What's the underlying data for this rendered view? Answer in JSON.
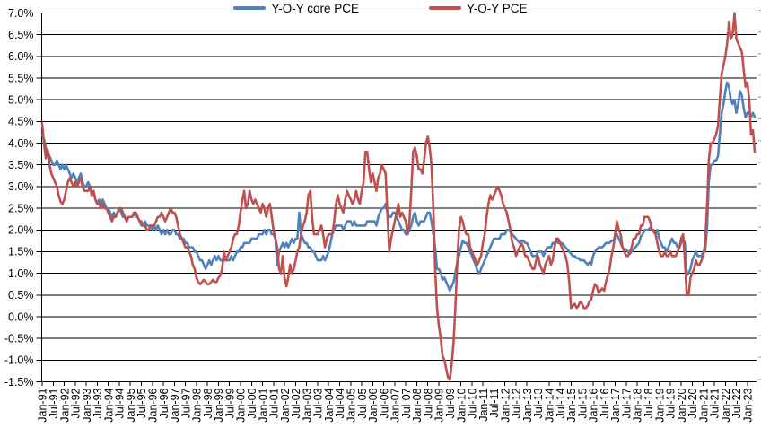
{
  "legend": {
    "items": [
      {
        "label": "Y-O-Y core PCE",
        "color": "#4F81BD"
      },
      {
        "label": "Y-O-Y PCE",
        "color": "#C0504D"
      }
    ]
  },
  "colors": {
    "background": "#FFFFFF",
    "gridline": "#000000",
    "axis_text": "#000000",
    "core_pce_line": "#4F81BD",
    "pce_line": "#C0504D"
  },
  "chart_data": {
    "type": "line",
    "title": "",
    "x_frequency": "monthly",
    "x_start": "Jan-1991",
    "x_end": "May-2023",
    "grid": true,
    "legend_position": "top-center",
    "y_axis": {
      "min": -1.5,
      "max": 7.0,
      "step": 0.5,
      "format": "percent",
      "tick_labels": [
        "7.0%",
        "6.5%",
        "6.0%",
        "5.5%",
        "5.0%",
        "4.5%",
        "4.0%",
        "3.5%",
        "3.0%",
        "2.5%",
        "2.0%",
        "1.5%",
        "1.0%",
        "0.5%",
        "0.0%",
        "-0.5%",
        "-1.0%",
        "-1.5%"
      ]
    },
    "x_tick_labels": [
      "Jan-91",
      "Jul-91",
      "Jan-92",
      "Jul-92",
      "Jan-93",
      "Jul-93",
      "Jan-94",
      "Jul-94",
      "Jan-95",
      "Jul-95",
      "Jan-96",
      "Jul-96",
      "Jan-97",
      "Jul-97",
      "Jan-98",
      "Jul-98",
      "Jan-99",
      "Jul-99",
      "Jan-00",
      "Jul-00",
      "Jan-01",
      "Jul-01",
      "Jan-02",
      "Jul-02",
      "Jan-03",
      "Jul-03",
      "Jan-04",
      "Jul-04",
      "Jan-05",
      "Jul-05",
      "Jan-06",
      "Jul-06",
      "Jan-07",
      "Jul-07",
      "Jan-08",
      "Jul-08",
      "Jan-09",
      "Jul-09",
      "Jan-10",
      "Jul-10",
      "Jan-11",
      "Jul-11",
      "Jan-12",
      "Jul-12",
      "Jan-13",
      "Jul-13",
      "Jan-14",
      "Jul-14",
      "Jan-15",
      "Jul-15",
      "Jan-16",
      "Jul-16",
      "Jan-17",
      "Jul-17",
      "Jan-18",
      "Jul-18",
      "Jan-19",
      "Jul-19",
      "Jan-20",
      "Jul-20",
      "Jan-21",
      "Jul-21",
      "Jan-22",
      "Jul-22",
      "Jan-23"
    ],
    "series": [
      {
        "name": "Y-O-Y core PCE",
        "color": "#4F81BD",
        "values": [
          4.2,
          4.1,
          3.9,
          3.8,
          3.7,
          3.6,
          3.5,
          3.5,
          3.6,
          3.5,
          3.4,
          3.5,
          3.4,
          3.5,
          3.4,
          3.3,
          3.2,
          3.3,
          3.2,
          3.1,
          3.2,
          3.3,
          3.1,
          3.0,
          3.0,
          3.1,
          3.0,
          2.8,
          2.9,
          2.7,
          2.6,
          2.7,
          2.6,
          2.7,
          2.6,
          2.5,
          2.5,
          2.4,
          2.3,
          2.4,
          2.3,
          2.4,
          2.5,
          2.4,
          2.3,
          2.3,
          2.2,
          2.3,
          2.3,
          2.3,
          2.4,
          2.3,
          2.3,
          2.2,
          2.1,
          2.1,
          2.2,
          2.1,
          2.1,
          2.1,
          2.0,
          2.1,
          2.0,
          2.1,
          2.0,
          1.9,
          2.0,
          1.9,
          2.0,
          1.9,
          1.9,
          2.0,
          2.0,
          1.9,
          1.9,
          1.8,
          1.8,
          1.8,
          1.7,
          1.7,
          1.6,
          1.6,
          1.6,
          1.5,
          1.5,
          1.4,
          1.3,
          1.3,
          1.2,
          1.1,
          1.2,
          1.3,
          1.2,
          1.3,
          1.4,
          1.3,
          1.4,
          1.3,
          1.3,
          1.3,
          1.3,
          1.3,
          1.3,
          1.4,
          1.3,
          1.4,
          1.5,
          1.5,
          1.6,
          1.6,
          1.7,
          1.7,
          1.7,
          1.7,
          1.8,
          1.8,
          1.8,
          1.8,
          1.9,
          1.9,
          1.9,
          2.0,
          1.9,
          2.0,
          2.0,
          1.9,
          1.9,
          1.8,
          1.2,
          1.5,
          1.6,
          1.7,
          1.6,
          1.7,
          1.6,
          1.7,
          1.8,
          1.7,
          1.8,
          1.8,
          2.4,
          1.9,
          1.8,
          1.7,
          1.7,
          1.6,
          1.6,
          1.5,
          1.5,
          1.4,
          1.3,
          1.3,
          1.3,
          1.4,
          1.3,
          1.4,
          1.5,
          1.7,
          1.9,
          2.0,
          2.1,
          2.1,
          2.1,
          2.1,
          2.0,
          2.1,
          2.2,
          2.2,
          2.2,
          2.1,
          2.2,
          2.1,
          2.1,
          2.1,
          2.1,
          2.1,
          2.1,
          2.2,
          2.2,
          2.2,
          2.2,
          2.2,
          2.1,
          2.3,
          2.4,
          2.5,
          2.5,
          2.6,
          2.4,
          2.3,
          2.3,
          2.4,
          2.4,
          2.3,
          2.2,
          2.1,
          2.0,
          2.0,
          1.9,
          1.9,
          2.0,
          2.1,
          2.3,
          2.4,
          2.2,
          2.1,
          2.2,
          2.2,
          2.2,
          2.3,
          2.4,
          2.4,
          2.2,
          1.9,
          1.6,
          1.1,
          1.1,
          1.0,
          0.85,
          0.9,
          0.8,
          0.7,
          0.6,
          0.7,
          0.8,
          1.0,
          1.25,
          1.4,
          1.6,
          1.75,
          1.7,
          1.7,
          1.6,
          1.5,
          1.4,
          1.3,
          1.2,
          1.05,
          1.0,
          1.1,
          1.2,
          1.3,
          1.4,
          1.5,
          1.6,
          1.7,
          1.8,
          1.8,
          1.8,
          1.8,
          1.9,
          1.9,
          1.9,
          2.0,
          2.0,
          1.95,
          1.9,
          1.85,
          1.8,
          1.75,
          1.7,
          1.75,
          1.75,
          1.7,
          1.7,
          1.6,
          1.5,
          1.4,
          1.4,
          1.4,
          1.5,
          1.5,
          1.5,
          1.4,
          1.5,
          1.6,
          1.6,
          1.6,
          1.7,
          1.7,
          1.75,
          1.7,
          1.7,
          1.7,
          1.65,
          1.6,
          1.55,
          1.5,
          1.45,
          1.4,
          1.4,
          1.35,
          1.35,
          1.3,
          1.3,
          1.3,
          1.25,
          1.2,
          1.25,
          1.2,
          1.4,
          1.5,
          1.55,
          1.6,
          1.6,
          1.6,
          1.65,
          1.7,
          1.7,
          1.7,
          1.75,
          1.75,
          1.85,
          1.9,
          1.8,
          1.7,
          1.6,
          1.55,
          1.55,
          1.5,
          1.45,
          1.5,
          1.55,
          1.6,
          1.65,
          1.7,
          1.85,
          1.9,
          2.0,
          2.0,
          2.0,
          2.05,
          2.0,
          1.95,
          1.9,
          2.0,
          1.8,
          1.7,
          1.6,
          1.6,
          1.5,
          1.6,
          1.7,
          1.8,
          1.7,
          1.7,
          1.6,
          1.6,
          1.7,
          1.8,
          1.7,
          0.95,
          1.0,
          1.1,
          1.3,
          1.4,
          1.5,
          1.4,
          1.4,
          1.4,
          1.5,
          1.5,
          2.0,
          3.1,
          3.5,
          3.5,
          3.6,
          3.6,
          3.7,
          4.2,
          4.7,
          4.9,
          5.2,
          5.4,
          5.3,
          5.0,
          4.9,
          5.0,
          4.7,
          4.9,
          5.2,
          5.1,
          4.8,
          4.6,
          4.7,
          4.7,
          4.6,
          4.7,
          4.6
        ]
      },
      {
        "name": "Y-O-Y PCE",
        "color": "#C0504D",
        "values": [
          4.45,
          4.0,
          3.65,
          3.85,
          3.5,
          3.3,
          3.2,
          3.1,
          3.0,
          2.8,
          2.65,
          2.6,
          2.7,
          2.9,
          3.1,
          3.2,
          3.1,
          3.0,
          3.1,
          3.0,
          3.1,
          3.2,
          3.0,
          2.9,
          2.9,
          2.9,
          3.0,
          2.8,
          2.9,
          2.7,
          2.6,
          2.6,
          2.5,
          2.6,
          2.5,
          2.5,
          2.4,
          2.3,
          2.2,
          2.3,
          2.3,
          2.4,
          2.5,
          2.5,
          2.4,
          2.3,
          2.2,
          2.3,
          2.3,
          2.3,
          2.4,
          2.4,
          2.3,
          2.2,
          2.2,
          2.1,
          2.1,
          2.0,
          2.0,
          2.1,
          2.1,
          2.1,
          2.2,
          2.3,
          2.3,
          2.4,
          2.3,
          2.2,
          2.3,
          2.4,
          2.5,
          2.4,
          2.4,
          2.3,
          2.1,
          1.9,
          1.8,
          1.7,
          1.6,
          1.6,
          1.5,
          1.4,
          1.2,
          1.1,
          0.9,
          0.8,
          0.75,
          0.8,
          0.85,
          0.8,
          0.75,
          0.75,
          0.8,
          0.85,
          0.8,
          0.8,
          0.9,
          0.95,
          1.1,
          1.5,
          1.3,
          1.4,
          1.5,
          1.6,
          1.8,
          1.9,
          1.9,
          2.1,
          2.4,
          2.7,
          2.9,
          2.5,
          2.6,
          2.9,
          2.7,
          2.6,
          2.7,
          2.6,
          2.5,
          2.4,
          2.6,
          2.5,
          2.3,
          2.5,
          2.6,
          2.3,
          2.0,
          1.8,
          1.6,
          1.1,
          1.0,
          1.4,
          0.9,
          0.7,
          0.9,
          1.2,
          1.0,
          1.1,
          1.3,
          1.5,
          1.6,
          1.9,
          2.1,
          2.2,
          2.4,
          2.8,
          2.9,
          2.3,
          1.9,
          1.9,
          1.9,
          2.0,
          2.1,
          1.9,
          1.6,
          1.8,
          1.9,
          1.9,
          1.9,
          2.2,
          2.6,
          2.8,
          2.6,
          2.5,
          2.4,
          2.7,
          2.9,
          2.8,
          2.7,
          2.6,
          2.7,
          2.9,
          2.7,
          2.6,
          2.9,
          3.1,
          3.8,
          3.8,
          3.4,
          3.1,
          3.3,
          3.1,
          2.9,
          3.2,
          3.3,
          3.5,
          3.4,
          3.3,
          2.4,
          1.5,
          1.8,
          2.0,
          2.2,
          2.4,
          2.6,
          2.3,
          2.4,
          2.3,
          2.2,
          1.9,
          2.2,
          2.9,
          3.8,
          3.9,
          3.7,
          3.4,
          3.4,
          3.3,
          3.6,
          4.0,
          4.15,
          3.9,
          3.5,
          2.5,
          1.1,
          0.2,
          -0.2,
          -0.5,
          -0.9,
          -1.0,
          -1.2,
          -1.4,
          -1.45,
          -1.1,
          -0.6,
          0.2,
          1.2,
          2.0,
          2.3,
          2.2,
          2.0,
          1.9,
          1.9,
          1.6,
          1.5,
          1.4,
          1.3,
          1.2,
          1.3,
          1.4,
          1.7,
          1.9,
          2.3,
          2.6,
          2.8,
          2.7,
          2.8,
          2.9,
          3.0,
          2.9,
          2.8,
          2.6,
          2.5,
          2.4,
          2.2,
          2.0,
          1.7,
          1.6,
          1.4,
          1.5,
          1.6,
          1.7,
          1.6,
          1.4,
          1.4,
          1.3,
          1.2,
          1.1,
          1.1,
          1.3,
          1.4,
          1.2,
          1.1,
          1.0,
          1.2,
          1.3,
          1.4,
          1.2,
          1.3,
          1.6,
          1.8,
          1.8,
          1.7,
          1.6,
          1.5,
          1.4,
          1.2,
          0.8,
          0.2,
          0.25,
          0.3,
          0.2,
          0.25,
          0.35,
          0.3,
          0.2,
          0.2,
          0.25,
          0.35,
          0.4,
          0.6,
          0.75,
          0.7,
          0.55,
          0.6,
          0.65,
          0.6,
          0.8,
          0.95,
          1.1,
          1.4,
          1.6,
          1.9,
          2.2,
          2.0,
          1.9,
          1.6,
          1.5,
          1.4,
          1.4,
          1.5,
          1.6,
          1.8,
          1.8,
          1.9,
          1.9,
          2.1,
          2.1,
          2.3,
          2.3,
          2.3,
          2.2,
          2.0,
          2.0,
          1.9,
          1.7,
          1.5,
          1.4,
          1.4,
          1.5,
          1.4,
          1.4,
          1.5,
          1.4,
          1.4,
          1.4,
          1.5,
          1.6,
          1.8,
          1.9,
          1.3,
          0.5,
          0.5,
          0.9,
          1.0,
          1.1,
          1.3,
          1.2,
          1.2,
          1.3,
          1.4,
          1.7,
          2.5,
          3.6,
          4.0,
          4.0,
          4.1,
          4.2,
          4.4,
          5.0,
          5.6,
          5.8,
          6.0,
          6.3,
          6.8,
          6.4,
          6.5,
          7.0,
          6.4,
          6.3,
          6.2,
          6.1,
          5.7,
          5.3,
          5.4,
          5.0,
          4.2,
          4.3,
          3.8
        ]
      }
    ]
  }
}
